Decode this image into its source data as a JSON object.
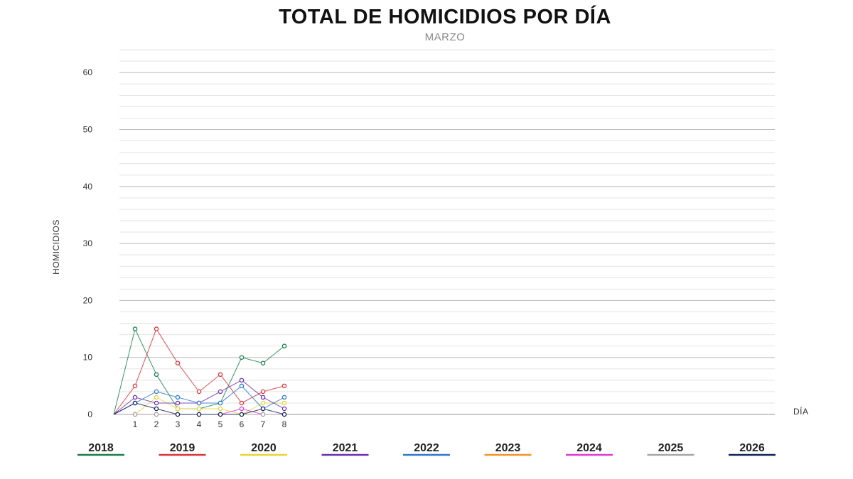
{
  "chart_data": {
    "type": "line",
    "title": "TOTAL DE HOMICIDIOS POR DÍA",
    "subtitle": "MARZO",
    "xlabel": "DÍA",
    "ylabel": "HOMICIDIOS",
    "x": [
      1,
      2,
      3,
      4,
      5,
      6,
      7,
      8
    ],
    "xlim": [
      0,
      31
    ],
    "ylim": [
      0,
      65
    ],
    "yticks": [
      0,
      10,
      20,
      30,
      40,
      50,
      60
    ],
    "grid": true,
    "legend_position": "bottom",
    "series": [
      {
        "name": "2018",
        "color": "#1a7f4b",
        "values": [
          15,
          7,
          1,
          1,
          2,
          10,
          9,
          12
        ]
      },
      {
        "name": "2019",
        "color": "#d9353a",
        "values": [
          5,
          15,
          9,
          4,
          7,
          2,
          4,
          5
        ]
      },
      {
        "name": "2020",
        "color": "#e8d43a",
        "values": [
          0,
          3,
          1,
          1,
          1,
          0,
          2,
          2
        ]
      },
      {
        "name": "2021",
        "color": "#6a2fb0",
        "values": [
          3,
          2,
          2,
          2,
          4,
          6,
          3,
          1
        ]
      },
      {
        "name": "2022",
        "color": "#2e78d0",
        "values": [
          2,
          4,
          3,
          2,
          2,
          5,
          1,
          3
        ]
      },
      {
        "name": "2023",
        "color": "#f0962a",
        "values": [
          0,
          0,
          0,
          0,
          0,
          0,
          0,
          0
        ]
      },
      {
        "name": "2024",
        "color": "#e03ad0",
        "values": [
          0,
          0,
          0,
          0,
          0,
          1,
          0,
          0
        ]
      },
      {
        "name": "2025",
        "color": "#a6a6a6",
        "values": [
          0,
          0,
          0,
          0,
          0,
          0,
          0,
          0
        ]
      },
      {
        "name": "2026",
        "color": "#12225e",
        "values": [
          2,
          1,
          0,
          0,
          0,
          0,
          1,
          0
        ]
      }
    ]
  }
}
